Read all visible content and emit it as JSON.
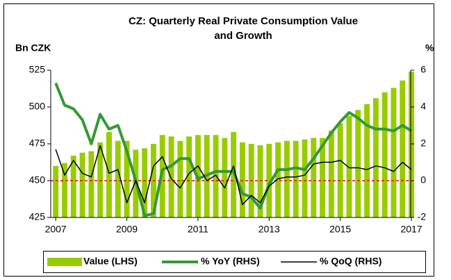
{
  "chart_data": {
    "type": "bar_line_combo",
    "title": [
      "CZ: Quarterly Real Private Consumption Value",
      "and Growth"
    ],
    "y_label": "Bn CZK",
    "y2_label": "%",
    "x": [
      2007,
      2007.25,
      2007.5,
      2007.75,
      2008,
      2008.25,
      2008.5,
      2008.75,
      2009,
      2009.25,
      2009.5,
      2009.75,
      2010,
      2010.25,
      2010.5,
      2010.75,
      2011,
      2011.25,
      2011.5,
      2011.75,
      2012,
      2012.25,
      2012.5,
      2012.75,
      2013,
      2013.25,
      2013.5,
      2013.75,
      2014,
      2014.25,
      2014.5,
      2014.75,
      2015,
      2015.25,
      2015.5,
      2015.75,
      2016,
      2016.25,
      2016.5,
      2016.75,
      2017
    ],
    "xlim": [
      2006.86,
      2016.98
    ],
    "xticks": [
      2007,
      2009,
      2011,
      2013,
      2015,
      2017
    ],
    "ylim": [
      425,
      525
    ],
    "yticks": [
      425,
      450,
      475,
      500,
      525
    ],
    "y2lim": [
      -2,
      6
    ],
    "y2ticks": [
      -2,
      0,
      2,
      4,
      6
    ],
    "reference_line": {
      "axis": "y2",
      "value": 0,
      "color": "#ff0000"
    },
    "series": [
      {
        "name": "Value (LHS)",
        "kind": "bar",
        "color": "#99cc00",
        "values": [
          460,
          462,
          467,
          469,
          470,
          476,
          483,
          477,
          477,
          471,
          472,
          475,
          481,
          480,
          477,
          480,
          481,
          481,
          481,
          479,
          483,
          476,
          475,
          474,
          475,
          476,
          477,
          477,
          478,
          479,
          479,
          484,
          489,
          494,
          498,
          502,
          506,
          510,
          513,
          518,
          524
        ]
      },
      {
        "name": "% YoY (RHS)",
        "kind": "line",
        "axis": "y2",
        "color": "#339933",
        "width": 4,
        "values": [
          5.3,
          4.1,
          3.9,
          3.3,
          2.0,
          3.6,
          2.8,
          3.0,
          1.6,
          0.0,
          -1.9,
          -1.8,
          0.6,
          0.8,
          1.2,
          1.2,
          0.1,
          0.3,
          0.5,
          0.5,
          0.5,
          -0.7,
          -0.9,
          -1.5,
          -0.2,
          0.6,
          0.6,
          0.7,
          0.6,
          1.2,
          1.9,
          2.6,
          3.2,
          3.7,
          3.4,
          3.0,
          2.8,
          2.8,
          2.7,
          3.0,
          2.7
        ]
      },
      {
        "name": "% QoQ (RHS)",
        "kind": "line",
        "axis": "y2",
        "color": "#000000",
        "width": 1.5,
        "values": [
          1.7,
          0.3,
          1.1,
          0.4,
          0.2,
          1.9,
          0.4,
          0.6,
          -1.2,
          0.0,
          -1.2,
          0.8,
          1.3,
          0.1,
          -0.4,
          0.4,
          0.8,
          0.0,
          0.3,
          -0.4,
          0.8,
          -1.3,
          -0.8,
          -1.2,
          -0.3,
          0.1,
          0.2,
          0.2,
          0.3,
          0.9,
          1.0,
          1.0,
          1.1,
          0.7,
          0.7,
          0.6,
          0.8,
          0.7,
          0.5,
          1.0,
          0.6
        ]
      }
    ]
  }
}
